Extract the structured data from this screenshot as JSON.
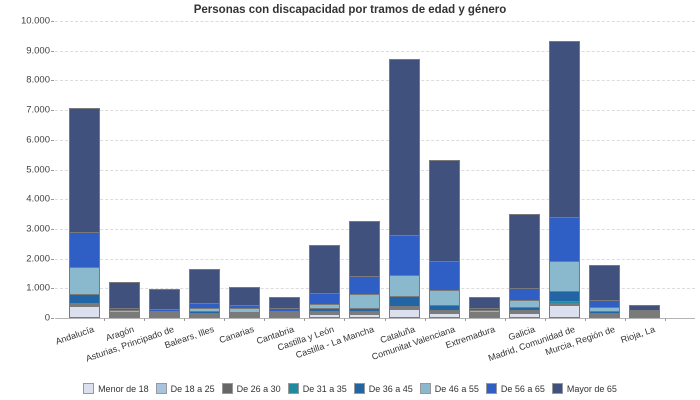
{
  "chart_data": {
    "type": "bar",
    "stacked": true,
    "title": "Personas con discapacidad por tramos de edad y género",
    "xlabel": "",
    "ylabel": "",
    "ylim": [
      0,
      10000
    ],
    "grid": "horizontal-dashed",
    "legend_position": "bottom",
    "y_ticks": [
      {
        "value": 0,
        "label": "0"
      },
      {
        "value": 1000,
        "label": "1.000"
      },
      {
        "value": 2000,
        "label": "2.000"
      },
      {
        "value": 3000,
        "label": "3.000"
      },
      {
        "value": 4000,
        "label": "4.000"
      },
      {
        "value": 5000,
        "label": "5.000"
      },
      {
        "value": 6000,
        "label": "6.000"
      },
      {
        "value": 7000,
        "label": "7.000"
      },
      {
        "value": 8000,
        "label": "8.000"
      },
      {
        "value": 9000,
        "label": "9.000"
      },
      {
        "value": 10000,
        "label": "10.000"
      }
    ],
    "categories": [
      "Andalucía",
      "Aragón",
      "Asturias, Principado de",
      "Balears, Illes",
      "Canarias",
      "Cantabria",
      "Castilla y León",
      "Castilla - La Mancha",
      "Cataluña",
      "Comunitat Valenciana",
      "Extremadura",
      "Galicia",
      "Madrid, Comunidad de",
      "Murcia, Región de",
      "Rioja, La"
    ],
    "series": [
      {
        "name": "Menor de 18",
        "color": "#dcdfee",
        "values": [
          390,
          80,
          40,
          70,
          65,
          45,
          145,
          140,
          290,
          160,
          55,
          155,
          450,
          70,
          15
        ]
      },
      {
        "name": "De 18 a 25",
        "color": "#a8c3de",
        "values": [
          45,
          20,
          15,
          20,
          30,
          15,
          30,
          35,
          35,
          30,
          15,
          35,
          60,
          25,
          5
        ]
      },
      {
        "name": "De 26 a 30",
        "color": "#666666",
        "values": [
          65,
          25,
          20,
          55,
          45,
          20,
          60,
          55,
          55,
          55,
          25,
          55,
          70,
          60,
          8
        ]
      },
      {
        "name": "De 31 a 35",
        "color": "#1e8c9e",
        "values": [
          80,
          25,
          20,
          35,
          45,
          20,
          55,
          55,
          60,
          55,
          20,
          55,
          80,
          55,
          7
        ]
      },
      {
        "name": "De 36 a 45",
        "color": "#2265a5",
        "values": [
          340,
          55,
          50,
          90,
          80,
          45,
          120,
          135,
          390,
          220,
          45,
          145,
          390,
          100,
          15
        ]
      },
      {
        "name": "De 46 a 55",
        "color": "#8ab8cc",
        "values": [
          950,
          90,
          80,
          135,
          145,
          60,
          190,
          505,
          750,
          540,
          85,
          280,
          1020,
          170,
          30
        ]
      },
      {
        "name": "De 56 a 65",
        "color": "#2f5ec4",
        "values": [
          1190,
          105,
          100,
          200,
          160,
          120,
          390,
          620,
          1350,
          1000,
          115,
          415,
          1530,
          270,
          60
        ]
      },
      {
        "name": "Mayor de 65",
        "color": "#40517e",
        "values": [
          4220,
          900,
          695,
          1180,
          610,
          435,
          1640,
          1885,
          5970,
          3430,
          410,
          2550,
          5950,
          1200,
          190
        ]
      }
    ]
  }
}
